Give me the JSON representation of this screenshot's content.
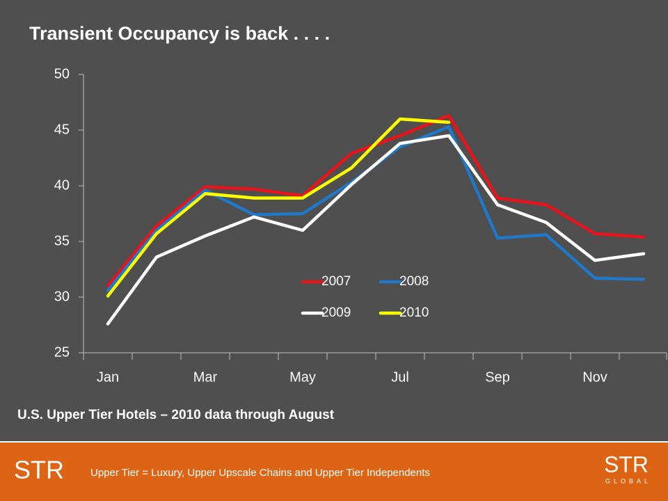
{
  "chart_data": {
    "type": "line",
    "title": "Transient Occupancy is back . . . .",
    "subtitle": "U.S. Upper Tier Hotels – 2010 data through August",
    "categories": [
      "Jan",
      null,
      "Mar",
      null,
      "May",
      null,
      "Jul",
      null,
      "Sep",
      null,
      "Nov",
      null
    ],
    "series": [
      {
        "name": "2007",
        "color": "#e8141b",
        "values": [
          31.0,
          36.4,
          39.9,
          39.7,
          39.1,
          42.9,
          44.5,
          46.3,
          38.9,
          38.3,
          35.7,
          35.4
        ]
      },
      {
        "name": "2008",
        "color": "#1f78c8",
        "values": [
          30.6,
          36.0,
          39.6,
          37.4,
          37.5,
          40.3,
          43.5,
          45.3,
          35.3,
          35.6,
          31.7,
          31.6
        ]
      },
      {
        "name": "2009",
        "color": "#ffffff",
        "values": [
          27.6,
          33.6,
          35.5,
          37.2,
          36.0,
          40.1,
          43.8,
          44.5,
          38.3,
          36.7,
          33.3,
          33.9
        ]
      },
      {
        "name": "2010",
        "color": "#ffff00",
        "values": [
          30.1,
          35.7,
          39.3,
          38.9,
          38.9,
          41.6,
          46.0,
          45.7,
          null,
          null,
          null,
          null
        ]
      }
    ],
    "ylim": [
      25,
      50
    ],
    "yticks": [
      25,
      30,
      35,
      40,
      45,
      50
    ],
    "grid": false
  },
  "footer": {
    "note": "Upper Tier = Luxury, Upper Upscale Chains and Upper Tier Independents",
    "logo_left": "STR",
    "logo_right": "STR",
    "logo_right_sub": "GLOBAL"
  }
}
